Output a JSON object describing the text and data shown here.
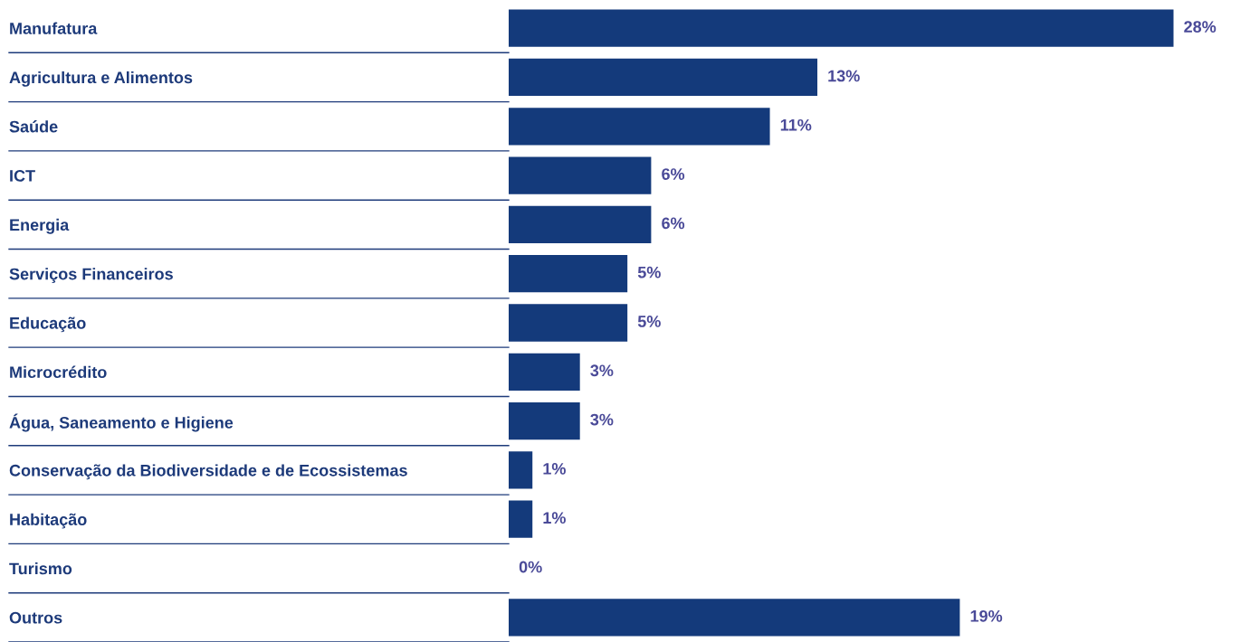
{
  "chart_data": {
    "type": "bar",
    "orientation": "horizontal",
    "categories": [
      "Manufatura",
      "Agricultura e Alimentos",
      "Saúde",
      "ICT",
      "Energia",
      "Serviços Financeiros",
      "Educação",
      "Microcrédito",
      "Água, Saneamento e Higiene",
      "Conservação da Biodiversidade e de Ecossistemas",
      "Habitação",
      "Turismo",
      "Outros"
    ],
    "values": [
      28,
      13,
      11,
      6,
      6,
      5,
      5,
      3,
      3,
      1,
      1,
      0,
      19
    ],
    "value_labels": [
      "28%",
      "13%",
      "11%",
      "6%",
      "6%",
      "5%",
      "5%",
      "3%",
      "3%",
      "1%",
      "1%",
      "0%",
      "19%"
    ],
    "color": "#143a7b",
    "tick_labels": "y",
    "grid": false,
    "legend": false
  }
}
